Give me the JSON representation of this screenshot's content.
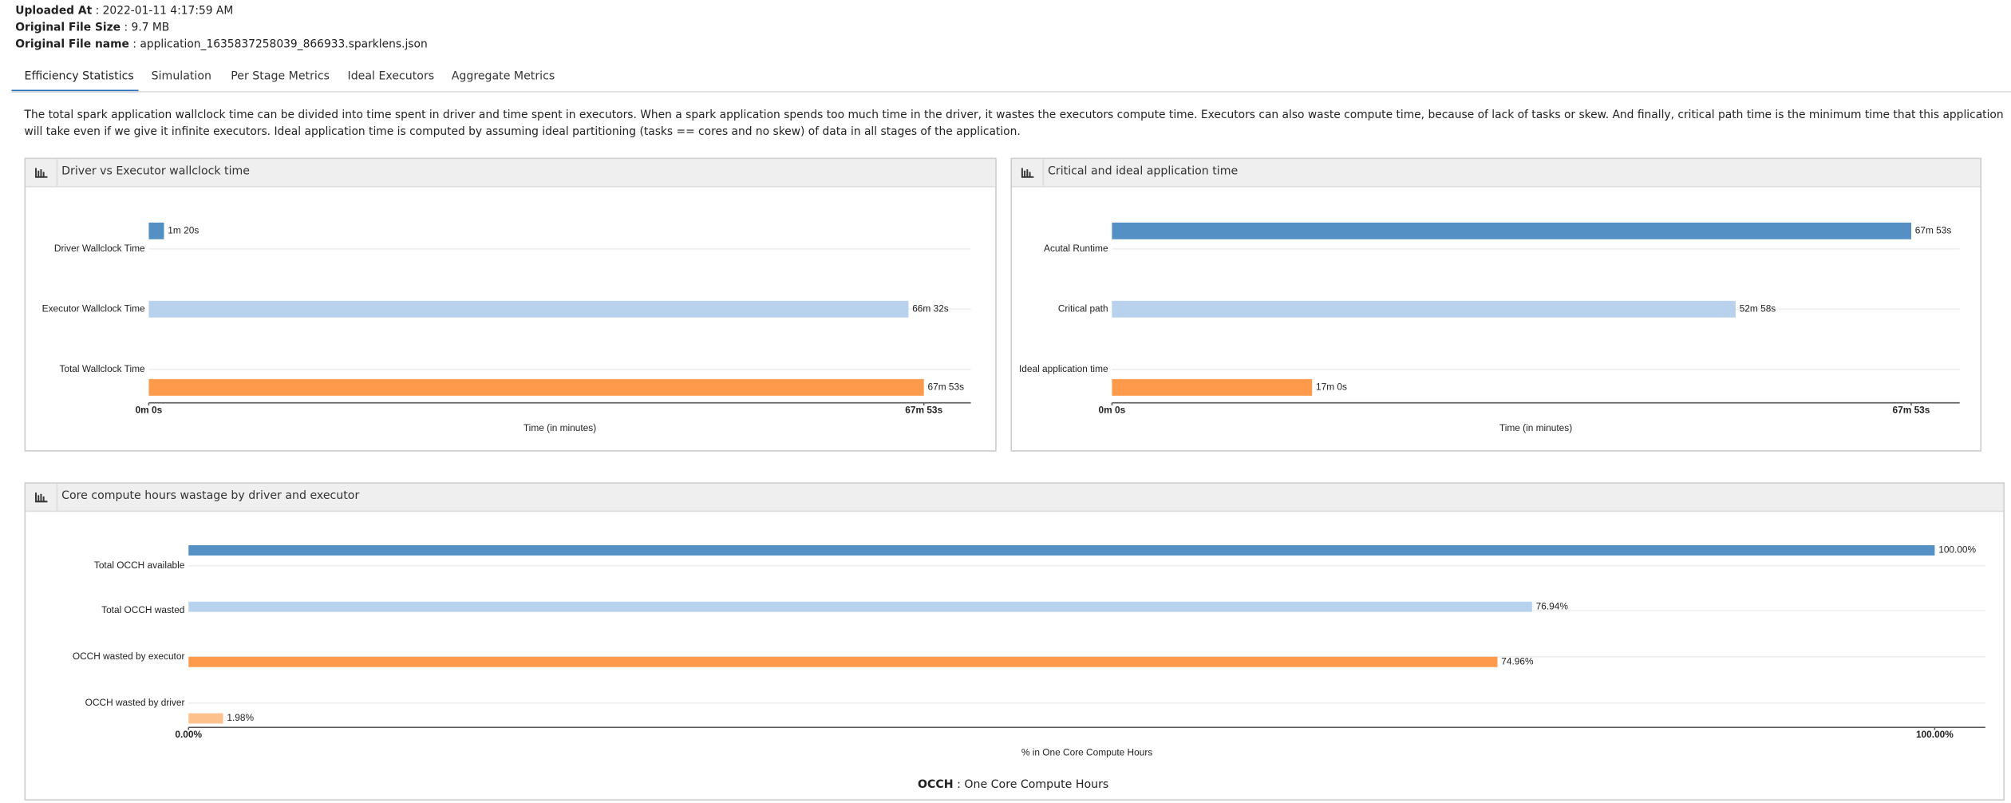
{
  "header": {
    "fields": [
      {
        "label": "Uploaded At",
        "value": "2022-01-11 4:17:59 AM"
      },
      {
        "label": "Original File Size",
        "value": "9.7 MB"
      },
      {
        "label": "Original File name",
        "value": "application_1635837258039_866933.sparklens.json"
      }
    ],
    "separator": ":"
  },
  "tabs": [
    "Efficiency Statistics",
    "Simulation",
    "Per Stage Metrics",
    "Ideal Executors",
    "Aggregate Metrics"
  ],
  "active_tab": 0,
  "description": "The total spark application wallclock time can be divided into time spent in driver and time spent in executors. When a spark application spends too much time in the driver, it wastes the executors compute time. Executors can also waste compute time, because of lack of tasks or skew. And finally, critical path time is the minimum time that this application will take even if we give it infinite executors. Ideal application time is computed by assuming ideal partitioning (tasks == cores and no skew) of data in all stages of the application.",
  "chart_data": [
    {
      "type": "hbar",
      "title": "Driver vs Executor wallclock time",
      "categories": [
        "Driver Wallclock Time",
        "Executor Wallclock Time",
        "Total Wallclock Time"
      ],
      "values": [
        1.3333,
        66.5333,
        67.8833
      ],
      "value_labels": [
        "1m 20s",
        "66m 32s",
        "67m 53s"
      ],
      "colors": [
        "#5490c4",
        "#b8d1ec",
        "#fd9a4c"
      ],
      "xlabel": "Time (in minutes)",
      "xlim": [
        0,
        72
      ],
      "xticks": [
        {
          "value": 0,
          "label": "0m 0s"
        },
        {
          "value": 67.8833,
          "label": "67m 53s"
        }
      ]
    },
    {
      "type": "hbar",
      "title": "Critical and ideal application time",
      "categories": [
        "Acutal Runtime",
        "Critical path",
        "Ideal application time"
      ],
      "values": [
        67.8833,
        52.9667,
        17
      ],
      "value_labels": [
        "67m 53s",
        "52m 58s",
        "17m 0s"
      ],
      "colors": [
        "#5490c4",
        "#b8d1ec",
        "#fd9a4c"
      ],
      "xlabel": "Time (in minutes)",
      "xlim": [
        0,
        72
      ],
      "xticks": [
        {
          "value": 0,
          "label": "0m 0s"
        },
        {
          "value": 67.8833,
          "label": "67m 53s"
        }
      ]
    },
    {
      "type": "hbar",
      "title": "Core compute hours wastage by driver and executor",
      "categories": [
        "Total OCCH available",
        "Total OCCH wasted",
        "OCCH wasted by executor",
        "OCCH wasted by driver"
      ],
      "values": [
        100,
        76.94,
        74.96,
        1.98
      ],
      "value_labels": [
        "100.00%",
        "76.94%",
        "74.96%",
        "1.98%"
      ],
      "colors": [
        "#5490c4",
        "#b8d1ec",
        "#fd9a4c",
        "#fdc18d"
      ],
      "xlabel": "% in One Core Compute Hours",
      "xlim": [
        0,
        102.9
      ],
      "xticks": [
        {
          "value": 0,
          "label": "0.00%"
        },
        {
          "value": 100,
          "label": "100.00%"
        }
      ]
    }
  ],
  "footnote": {
    "term": "OCCH",
    "separator": ":",
    "definition": "One Core Compute Hours"
  }
}
